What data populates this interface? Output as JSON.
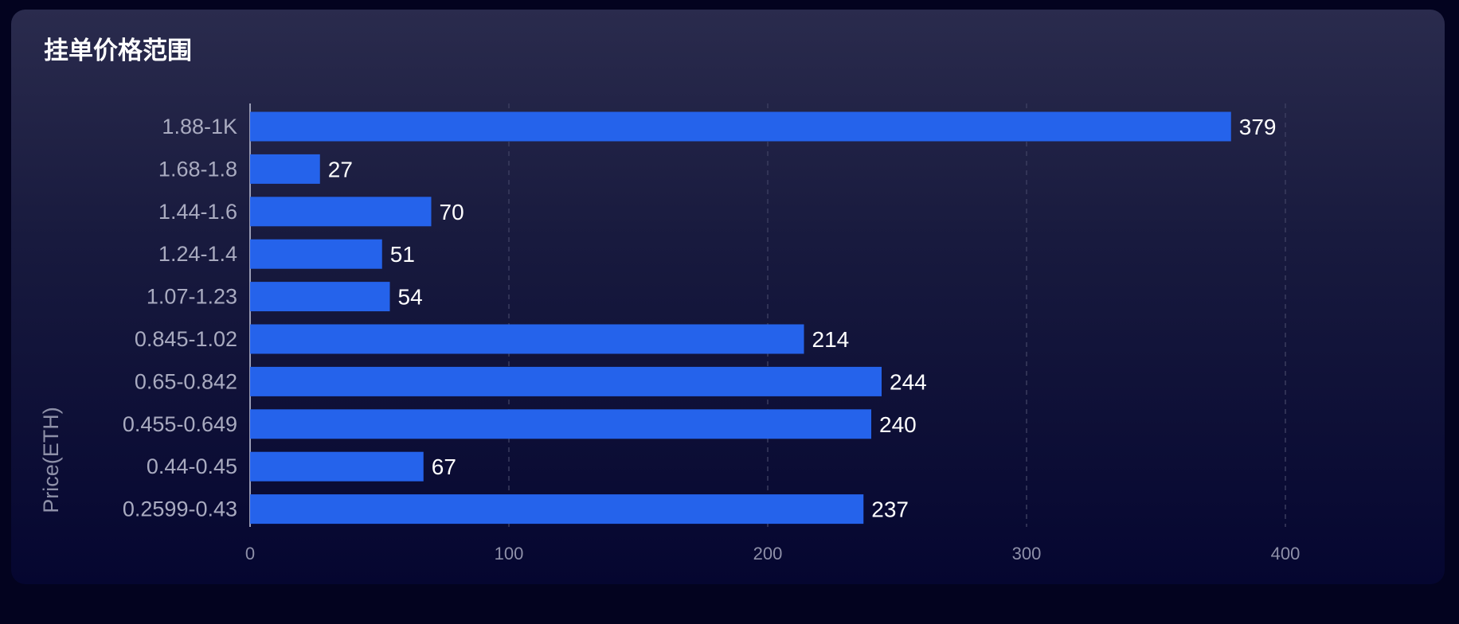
{
  "card": {
    "title": "挂单价格范围"
  },
  "colors": {
    "page_background": "#03031f",
    "bar": "#2563eb",
    "tick_label": "#8e90a8",
    "category_label": "#a9abc0",
    "value_label": "#ffffff",
    "grid": "#3a3c5e"
  },
  "chart_data": {
    "type": "bar",
    "orientation": "horizontal",
    "categories": [
      "1.88-1K",
      "1.68-1.8",
      "1.44-1.6",
      "1.24-1.4",
      "1.07-1.23",
      "0.845-1.02",
      "0.65-0.842",
      "0.455-0.649",
      "0.44-0.45",
      "0.2599-0.43"
    ],
    "values": [
      379,
      27,
      70,
      51,
      54,
      214,
      244,
      240,
      67,
      237
    ],
    "ylabel": "Price(ETH)",
    "xlabel": "",
    "xlim": [
      0,
      400
    ],
    "xticks": [
      0,
      100,
      200,
      300,
      400
    ],
    "grid": "vertical-dashed",
    "data_labels": true,
    "legend": "none"
  }
}
